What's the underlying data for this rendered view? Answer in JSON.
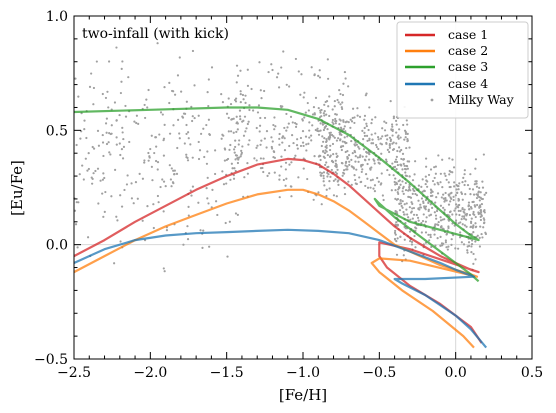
{
  "chart_data": {
    "type": "line",
    "annotation": "two-infall (with kick)",
    "xlabel": "[Fe/H]",
    "ylabel": "[Eu/Fe]",
    "xlim": [
      -2.5,
      0.5
    ],
    "ylim": [
      -0.5,
      1.0
    ],
    "xticks": [
      "−2.5",
      "−2.0",
      "−1.5",
      "−1.0",
      "−0.5",
      "0.0",
      "0.5"
    ],
    "yticks": [
      "−0.5",
      "0.0",
      "0.5",
      "1.0"
    ],
    "grid": false,
    "reference_lines": {
      "x": 0.0,
      "y": 0.0
    },
    "legend_position": "top-right",
    "series": [
      {
        "name": "case 1",
        "color": "#d62728",
        "x": [
          -2.5,
          -2.3,
          -2.1,
          -1.9,
          -1.7,
          -1.5,
          -1.3,
          -1.1,
          -1.0,
          -0.9,
          -0.8,
          -0.7,
          -0.6,
          -0.5,
          -0.4,
          -0.3,
          -0.2,
          -0.1,
          0.0,
          0.1,
          0.15,
          -0.3,
          -0.5,
          -0.5,
          -0.45,
          -0.3,
          -0.1,
          0.1,
          0.17
        ],
        "y": [
          -0.05,
          0.02,
          0.1,
          0.17,
          0.24,
          0.3,
          0.35,
          0.375,
          0.37,
          0.35,
          0.31,
          0.26,
          0.2,
          0.14,
          0.08,
          0.03,
          -0.01,
          -0.05,
          -0.08,
          -0.11,
          -0.12,
          -0.02,
          0.01,
          -0.05,
          -0.1,
          -0.18,
          -0.26,
          -0.36,
          -0.43
        ]
      },
      {
        "name": "case 2",
        "color": "#ff7f0e",
        "x": [
          -2.5,
          -2.3,
          -2.1,
          -1.9,
          -1.7,
          -1.5,
          -1.3,
          -1.1,
          -1.0,
          -0.9,
          -0.8,
          -0.7,
          -0.6,
          -0.5,
          -0.4,
          -0.3,
          -0.2,
          -0.1,
          0.0,
          0.1,
          0.14,
          -0.3,
          -0.5,
          -0.55,
          -0.5,
          -0.35,
          -0.15,
          0.05,
          0.12
        ],
        "y": [
          -0.12,
          -0.05,
          0.02,
          0.08,
          0.13,
          0.18,
          0.22,
          0.24,
          0.24,
          0.22,
          0.19,
          0.15,
          0.1,
          0.05,
          0.0,
          -0.03,
          -0.06,
          -0.09,
          -0.11,
          -0.13,
          -0.14,
          -0.07,
          -0.06,
          -0.08,
          -0.12,
          -0.2,
          -0.29,
          -0.4,
          -0.45
        ]
      },
      {
        "name": "case 3",
        "color": "#2ca02c",
        "x": [
          -2.5,
          -2.0,
          -1.5,
          -1.3,
          -1.1,
          -0.9,
          -0.7,
          -0.5,
          -0.3,
          -0.1,
          0.0,
          0.1,
          0.15,
          -0.3,
          -0.5,
          -0.53,
          -0.5,
          -0.4,
          -0.2,
          0.0,
          0.1,
          0.15
        ],
        "y": [
          0.58,
          0.59,
          0.6,
          0.6,
          0.59,
          0.55,
          0.48,
          0.38,
          0.27,
          0.15,
          0.09,
          0.04,
          0.02,
          0.1,
          0.17,
          0.2,
          0.18,
          0.12,
          0.02,
          -0.08,
          -0.13,
          -0.16
        ]
      },
      {
        "name": "case 4",
        "color": "#1f77b4",
        "x": [
          -2.5,
          -2.3,
          -2.1,
          -1.9,
          -1.7,
          -1.5,
          -1.3,
          -1.1,
          -0.9,
          -0.7,
          -0.5,
          -0.3,
          -0.1,
          0.0,
          0.12,
          -0.2,
          -0.4,
          -0.35,
          -0.2,
          0.0,
          0.1,
          0.2
        ],
        "y": [
          -0.08,
          -0.02,
          0.02,
          0.04,
          0.05,
          0.055,
          0.06,
          0.065,
          0.06,
          0.05,
          0.02,
          -0.03,
          -0.08,
          -0.11,
          -0.14,
          -0.15,
          -0.15,
          -0.17,
          -0.22,
          -0.31,
          -0.37,
          -0.45
        ]
      }
    ],
    "scatter": {
      "name": "Milky Way",
      "color": "#a0a0a0"
    },
    "scatter_clusters": [
      {
        "xmin": -2.5,
        "xmax": -1.4,
        "ymin": -0.2,
        "ymax": 1.0,
        "n": 300
      },
      {
        "xmin": -1.5,
        "xmax": -0.7,
        "ymin": 0.1,
        "ymax": 0.9,
        "n": 280
      },
      {
        "xmin": -0.9,
        "xmax": -0.3,
        "ymin": 0.1,
        "ymax": 0.7,
        "n": 380
      },
      {
        "xmin": -0.4,
        "xmax": 0.2,
        "ymin": -0.15,
        "ymax": 0.45,
        "n": 500
      }
    ]
  }
}
